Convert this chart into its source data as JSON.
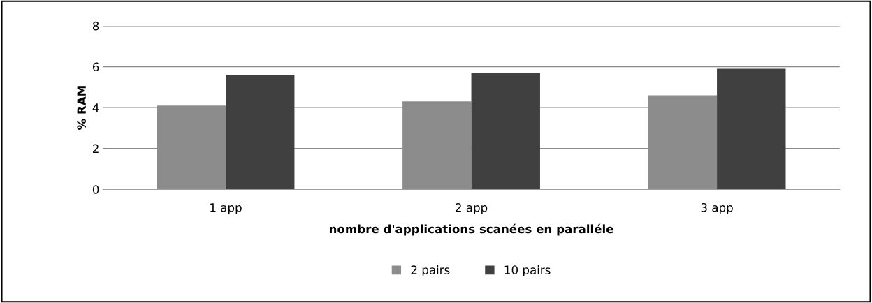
{
  "chart_data": {
    "type": "bar",
    "xlabel": "nombre d'applications scanées en paralléle",
    "ylabel": "% RAM",
    "categories": [
      "1 app",
      "2 app",
      "3 app"
    ],
    "series": [
      {
        "name": "2 pairs",
        "color": "#8c8c8c",
        "values": [
          4.1,
          4.3,
          4.6
        ]
      },
      {
        "name": "10 pairs",
        "color": "#404040",
        "values": [
          5.6,
          5.7,
          5.9
        ]
      }
    ],
    "ylim": [
      0,
      8
    ],
    "yticks": [
      0,
      2,
      4,
      6,
      8
    ],
    "grid": "y",
    "legend": "bottom"
  }
}
